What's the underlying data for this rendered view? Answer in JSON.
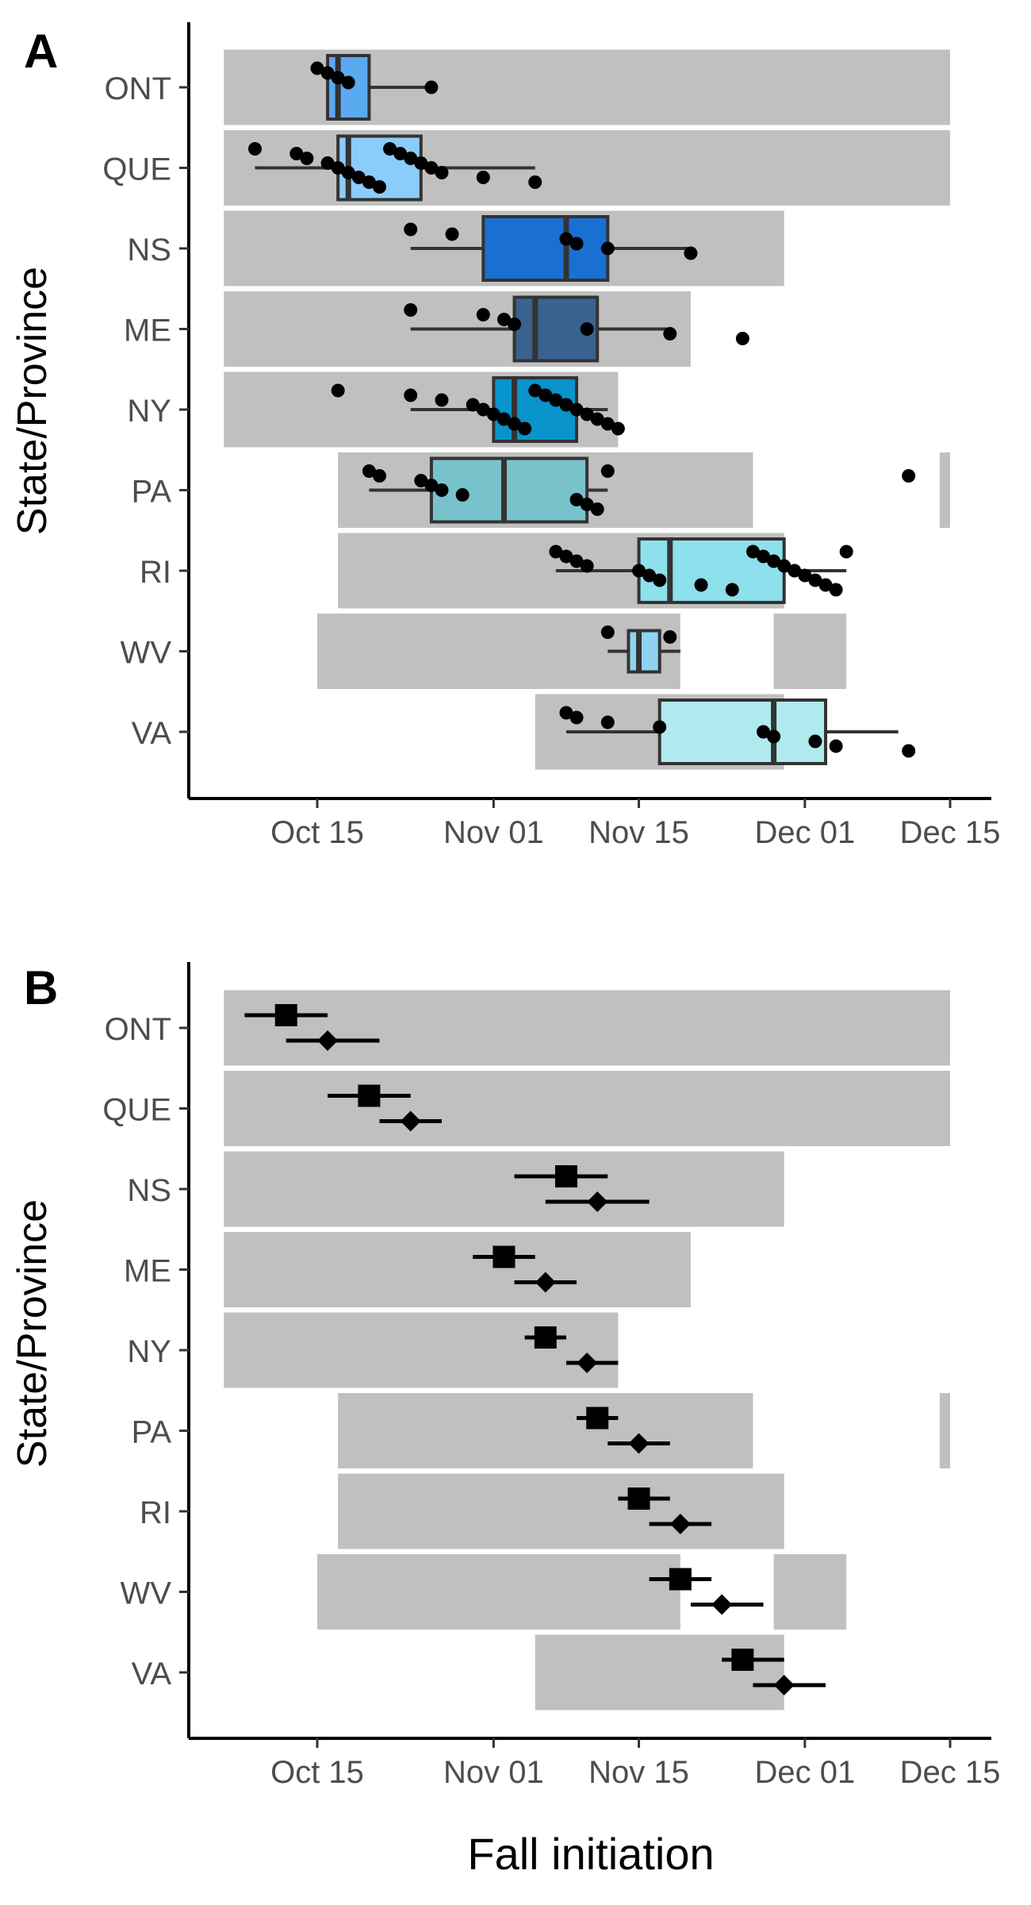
{
  "chart_data": [
    {
      "panel_label": "A",
      "type": "boxplot",
      "ylabel": "State/Province",
      "xlabel": "",
      "x_axis_type": "date",
      "x_ticks": [
        "Oct 15",
        "Nov 01",
        "Nov 15",
        "Dec 01",
        "Dec 15"
      ],
      "x_tick_dates": [
        "10-15",
        "11-01",
        "11-15",
        "12-01",
        "12-15"
      ],
      "xlim": [
        "10-06",
        "12-18"
      ],
      "categories": [
        "ONT",
        "QUE",
        "NS",
        "ME",
        "NY",
        "PA",
        "RI",
        "WV",
        "VA"
      ],
      "background_color": "#c0c0c0",
      "season_windows": [
        {
          "category": "ONT",
          "periods": [
            [
              "10-06",
              "12-15"
            ]
          ]
        },
        {
          "category": "QUE",
          "periods": [
            [
              "10-06",
              "12-15"
            ]
          ]
        },
        {
          "category": "NS",
          "periods": [
            [
              "10-06",
              "11-29"
            ]
          ]
        },
        {
          "category": "ME",
          "periods": [
            [
              "10-06",
              "11-20"
            ]
          ]
        },
        {
          "category": "NY",
          "periods": [
            [
              "10-06",
              "11-13"
            ]
          ]
        },
        {
          "category": "PA",
          "periods": [
            [
              "10-17",
              "11-26"
            ],
            [
              "12-14",
              "12-15"
            ]
          ]
        },
        {
          "category": "RI",
          "periods": [
            [
              "10-17",
              "11-29"
            ]
          ]
        },
        {
          "category": "WV",
          "periods": [
            [
              "10-15",
              "11-19"
            ],
            [
              "11-28",
              "12-05"
            ]
          ]
        },
        {
          "category": "VA",
          "periods": [
            [
              "11-05",
              "11-29"
            ]
          ]
        }
      ],
      "boxes": [
        {
          "category": "ONT",
          "whisker_low": "10-16",
          "q1": "10-16",
          "median": "10-17",
          "q3": "10-20",
          "whisker_high": "10-26",
          "color": "#5aaaf0"
        },
        {
          "category": "QUE",
          "whisker_low": "10-09",
          "q1": "10-17",
          "median": "10-18",
          "q3": "10-25",
          "whisker_high": "11-05",
          "color": "#8cccfa"
        },
        {
          "category": "NS",
          "whisker_low": "10-24",
          "q1": "10-31",
          "median": "11-08",
          "q3": "11-12",
          "whisker_high": "11-20",
          "color": "#1a70d2"
        },
        {
          "category": "ME",
          "whisker_low": "10-24",
          "q1": "11-03",
          "median": "11-05",
          "q3": "11-11",
          "whisker_high": "11-18",
          "color": "#3a6290"
        },
        {
          "category": "NY",
          "whisker_low": "10-24",
          "q1": "11-01",
          "median": "11-03",
          "q3": "11-09",
          "whisker_high": "11-12",
          "color": "#0a94cc"
        },
        {
          "category": "PA",
          "whisker_low": "10-20",
          "q1": "10-26",
          "median": "11-02",
          "q3": "11-10",
          "whisker_high": "11-12",
          "color": "#78c2cc"
        },
        {
          "category": "RI",
          "whisker_low": "11-07",
          "q1": "11-15",
          "median": "11-18",
          "q3": "11-29",
          "whisker_high": "12-05",
          "color": "#8ee0ec"
        },
        {
          "category": "WV",
          "whisker_low": "11-12",
          "q1": "11-14",
          "median": "11-15",
          "q3": "11-17",
          "whisker_high": "11-19",
          "color": "#8ed4f0"
        },
        {
          "category": "VA",
          "whisker_low": "11-08",
          "q1": "11-17",
          "median": "11-28",
          "q3": "12-03",
          "whisker_high": "12-10",
          "color": "#b0eaee"
        }
      ],
      "points": [
        {
          "category": "ONT",
          "dates": [
            "10-15",
            "10-16",
            "10-17",
            "10-18",
            "10-26"
          ]
        },
        {
          "category": "QUE",
          "dates": [
            "10-09",
            "10-13",
            "10-14",
            "10-16",
            "10-17",
            "10-18",
            "10-19",
            "10-20",
            "10-21",
            "10-22",
            "10-23",
            "10-24",
            "10-25",
            "10-26",
            "10-27",
            "10-31",
            "11-05"
          ]
        },
        {
          "category": "NS",
          "dates": [
            "10-24",
            "10-28",
            "11-08",
            "11-09",
            "11-12",
            "11-20"
          ]
        },
        {
          "category": "ME",
          "dates": [
            "10-24",
            "10-31",
            "11-02",
            "11-03",
            "11-10",
            "11-18",
            "11-25"
          ]
        },
        {
          "category": "NY",
          "dates": [
            "10-17",
            "10-24",
            "10-27",
            "10-30",
            "10-31",
            "11-01",
            "11-02",
            "11-03",
            "11-04",
            "11-05",
            "11-06",
            "11-07",
            "11-08",
            "11-09",
            "11-10",
            "11-11",
            "11-12",
            "11-13"
          ]
        },
        {
          "category": "PA",
          "dates": [
            "10-20",
            "10-21",
            "10-25",
            "10-26",
            "10-27",
            "10-29",
            "11-09",
            "11-10",
            "11-11",
            "11-12",
            "12-11"
          ]
        },
        {
          "category": "RI",
          "dates": [
            "11-07",
            "11-08",
            "11-09",
            "11-10",
            "11-15",
            "11-16",
            "11-17",
            "11-21",
            "11-24",
            "11-26",
            "11-27",
            "11-28",
            "11-29",
            "11-30",
            "12-01",
            "12-02",
            "12-03",
            "12-04",
            "12-05"
          ]
        },
        {
          "category": "WV",
          "dates": [
            "11-12",
            "11-18"
          ]
        },
        {
          "category": "VA",
          "dates": [
            "11-08",
            "11-09",
            "11-12",
            "11-17",
            "11-27",
            "11-28",
            "12-02",
            "12-04",
            "12-11"
          ]
        }
      ]
    },
    {
      "panel_label": "B",
      "type": "point-range",
      "ylabel": "State/Province",
      "xlabel": "Fall initiation",
      "x_axis_type": "date",
      "x_ticks": [
        "Oct 15",
        "Nov 01",
        "Nov 15",
        "Dec 01",
        "Dec 15"
      ],
      "x_tick_dates": [
        "10-15",
        "11-01",
        "11-15",
        "12-01",
        "12-15"
      ],
      "xlim": [
        "10-06",
        "12-18"
      ],
      "categories": [
        "ONT",
        "QUE",
        "NS",
        "ME",
        "NY",
        "PA",
        "RI",
        "WV",
        "VA"
      ],
      "background_color": "#c0c0c0",
      "season_windows": [
        {
          "category": "ONT",
          "periods": [
            [
              "10-06",
              "12-15"
            ]
          ]
        },
        {
          "category": "QUE",
          "periods": [
            [
              "10-06",
              "12-15"
            ]
          ]
        },
        {
          "category": "NS",
          "periods": [
            [
              "10-06",
              "11-29"
            ]
          ]
        },
        {
          "category": "ME",
          "periods": [
            [
              "10-06",
              "11-20"
            ]
          ]
        },
        {
          "category": "NY",
          "periods": [
            [
              "10-06",
              "11-13"
            ]
          ]
        },
        {
          "category": "PA",
          "periods": [
            [
              "10-17",
              "11-26"
            ],
            [
              "12-14",
              "12-15"
            ]
          ]
        },
        {
          "category": "RI",
          "periods": [
            [
              "10-17",
              "11-29"
            ]
          ]
        },
        {
          "category": "WV",
          "periods": [
            [
              "10-15",
              "11-19"
            ],
            [
              "11-28",
              "12-05"
            ]
          ]
        },
        {
          "category": "VA",
          "periods": [
            [
              "11-05",
              "11-29"
            ]
          ]
        }
      ],
      "series": [
        {
          "marker": "square",
          "points": [
            {
              "category": "ONT",
              "date": "10-12",
              "low": "10-08",
              "high": "10-16"
            },
            {
              "category": "QUE",
              "date": "10-20",
              "low": "10-16",
              "high": "10-24"
            },
            {
              "category": "NS",
              "date": "11-08",
              "low": "11-03",
              "high": "11-12"
            },
            {
              "category": "ME",
              "date": "11-02",
              "low": "10-30",
              "high": "11-05"
            },
            {
              "category": "NY",
              "date": "11-06",
              "low": "11-04",
              "high": "11-08"
            },
            {
              "category": "PA",
              "date": "11-11",
              "low": "11-09",
              "high": "11-13"
            },
            {
              "category": "RI",
              "date": "11-15",
              "low": "11-13",
              "high": "11-18"
            },
            {
              "category": "WV",
              "date": "11-19",
              "low": "11-16",
              "high": "11-22"
            },
            {
              "category": "VA",
              "date": "11-25",
              "low": "11-23",
              "high": "11-29"
            }
          ]
        },
        {
          "marker": "diamond",
          "points": [
            {
              "category": "ONT",
              "date": "10-16",
              "low": "10-12",
              "high": "10-21"
            },
            {
              "category": "QUE",
              "date": "10-24",
              "low": "10-21",
              "high": "10-27"
            },
            {
              "category": "NS",
              "date": "11-11",
              "low": "11-06",
              "high": "11-16"
            },
            {
              "category": "ME",
              "date": "11-06",
              "low": "11-03",
              "high": "11-09"
            },
            {
              "category": "NY",
              "date": "11-10",
              "low": "11-08",
              "high": "11-13"
            },
            {
              "category": "PA",
              "date": "11-15",
              "low": "11-12",
              "high": "11-18"
            },
            {
              "category": "RI",
              "date": "11-19",
              "low": "11-16",
              "high": "11-22"
            },
            {
              "category": "WV",
              "date": "11-23",
              "low": "11-20",
              "high": "11-27"
            },
            {
              "category": "VA",
              "date": "11-29",
              "low": "11-26",
              "high": "12-03"
            }
          ]
        }
      ]
    }
  ]
}
